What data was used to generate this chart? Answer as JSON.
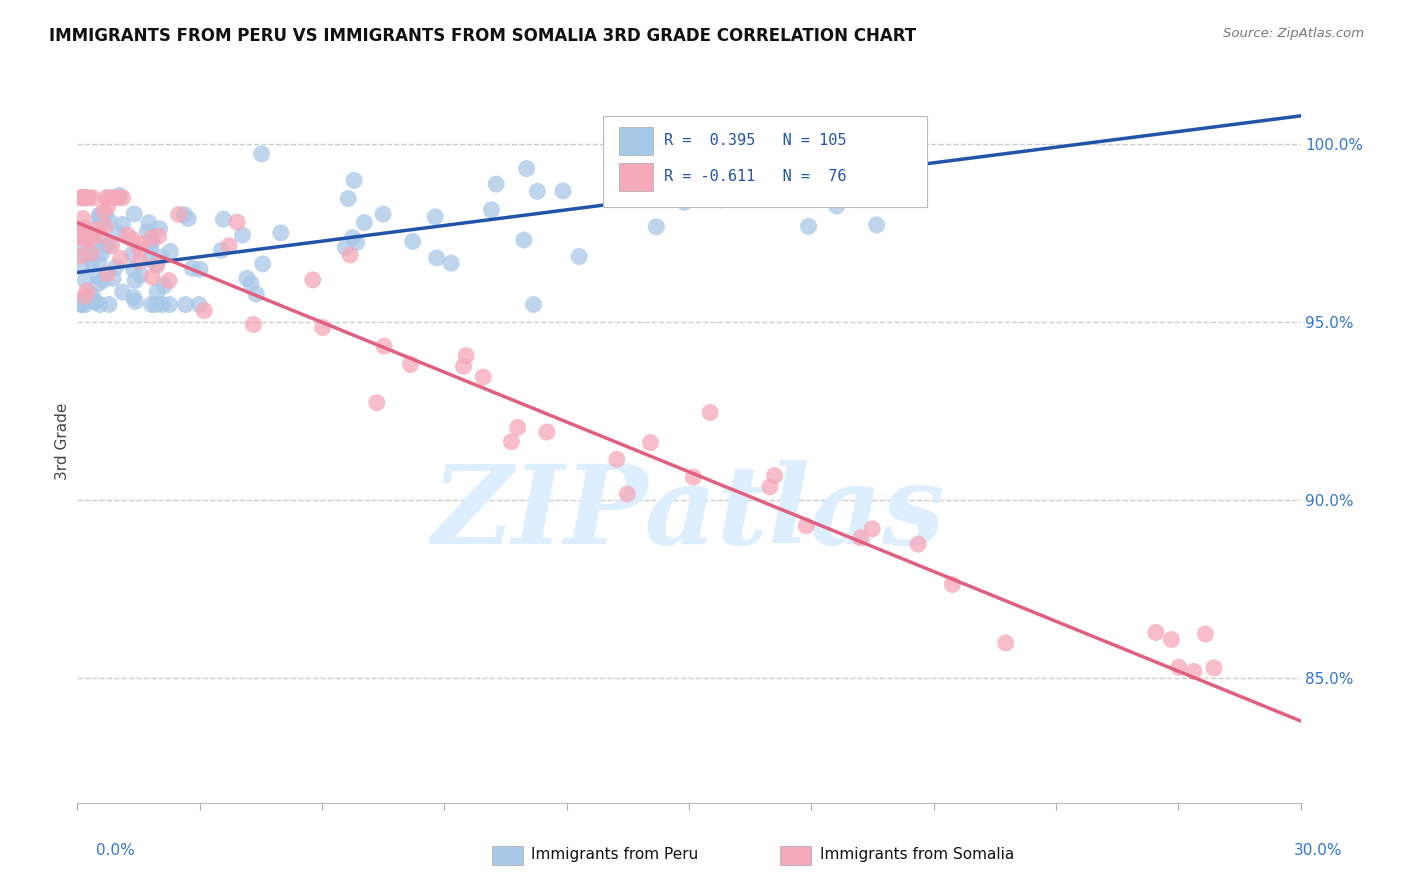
{
  "title": "IMMIGRANTS FROM PERU VS IMMIGRANTS FROM SOMALIA 3RD GRADE CORRELATION CHART",
  "source": "Source: ZipAtlas.com",
  "ylabel": "3rd Grade",
  "yaxis_labels": [
    "100.0%",
    "95.0%",
    "90.0%",
    "85.0%"
  ],
  "yaxis_values": [
    1.0,
    0.95,
    0.9,
    0.85
  ],
  "xmin": 0.0,
  "xmax": 0.3,
  "ymin": 0.815,
  "ymax": 1.018,
  "peru_color": "#a8c8e8",
  "somalia_color": "#f5a8b8",
  "peru_line_color": "#2255aa",
  "somalia_line_color": "#e06080",
  "background_color": "#ffffff",
  "watermark_text": "ZIPatlas",
  "watermark_color": "#ddeeff",
  "peru_trend_x": [
    0.0,
    0.3
  ],
  "peru_trend_y": [
    0.964,
    1.008
  ],
  "somalia_trend_x": [
    0.0,
    0.3
  ],
  "somalia_trend_y": [
    0.978,
    0.838
  ],
  "legend_text_color": "#2255aa",
  "legend_R_peru": "R =  0.395",
  "legend_N_peru": "N = 105",
  "legend_R_somalia": "R = -0.611",
  "legend_N_somalia": "N =  76"
}
